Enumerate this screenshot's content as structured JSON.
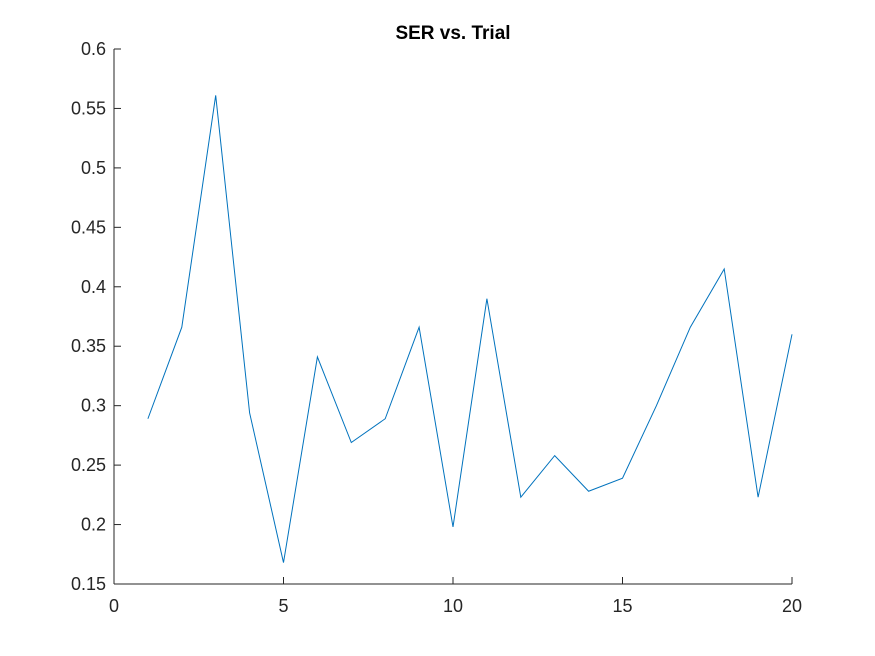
{
  "chart_data": {
    "type": "line",
    "title": "SER vs. Trial",
    "xlabel": "",
    "ylabel": "",
    "xlim": [
      0,
      20
    ],
    "ylim": [
      0.15,
      0.6
    ],
    "xticks": [
      0,
      5,
      10,
      15,
      20
    ],
    "xtick_labels": [
      "0",
      "5",
      "10",
      "15",
      "20"
    ],
    "yticks": [
      0.15,
      0.2,
      0.25,
      0.3,
      0.35,
      0.4,
      0.45,
      0.5,
      0.55,
      0.6
    ],
    "ytick_labels": [
      "0.15",
      "0.2",
      "0.25",
      "0.3",
      "0.35",
      "0.4",
      "0.45",
      "0.5",
      "0.55",
      "0.6"
    ],
    "grid": false,
    "legend": "none",
    "series": [
      {
        "color": "#0072BD",
        "x": [
          1,
          2,
          3,
          4,
          5,
          6,
          7,
          8,
          9,
          10,
          11,
          12,
          13,
          14,
          15,
          16,
          17,
          18,
          19,
          20
        ],
        "y": [
          0.289,
          0.366,
          0.561,
          0.294,
          0.168,
          0.341,
          0.269,
          0.289,
          0.366,
          0.198,
          0.39,
          0.223,
          0.258,
          0.228,
          0.239,
          0.3,
          0.366,
          0.415,
          0.223,
          0.36
        ]
      }
    ]
  }
}
